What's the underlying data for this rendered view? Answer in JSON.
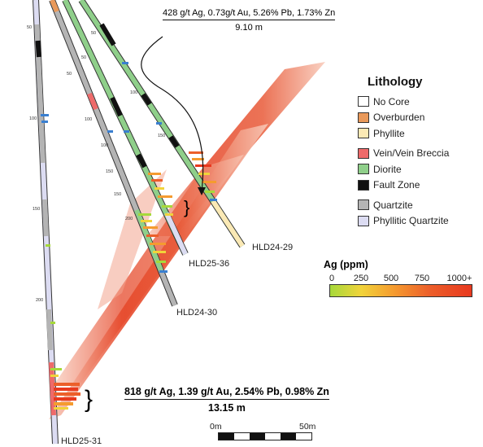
{
  "assays": {
    "top": {
      "grade": "428 g/t Ag, 0.73g/t Au, 5.26% Pb, 1.73% Zn",
      "width": "9.10 m"
    },
    "bottom": {
      "grade": "818 g/t Ag, 1.39 g/t Au, 2.54% Pb, 0.98% Zn",
      "width": "13.15 m"
    }
  },
  "holes": [
    "HLD24-29",
    "HLD25-36",
    "HLD24-30",
    "HLD25-31"
  ],
  "depth_ticks": [
    "50",
    "100",
    "150",
    "200",
    "50",
    "100",
    "150",
    "200",
    "50",
    "100",
    "150",
    "50",
    "100",
    "150"
  ],
  "legend": {
    "title": "Lithology",
    "items": [
      {
        "label": "No Core",
        "color": "#ffffff"
      },
      {
        "label": "Overburden",
        "color": "#e9995a"
      },
      {
        "label": "Phyllite",
        "color": "#fbe9b5"
      },
      {
        "label": "Vein/Vein Breccia",
        "color": "#ee6a6a"
      },
      {
        "label": "Diorite",
        "color": "#8fcf8a"
      },
      {
        "label": "Fault Zone",
        "color": "#111111"
      },
      {
        "label": "Quartzite",
        "color": "#b4b4b4"
      },
      {
        "label": "Phyllitic Quartzite",
        "color": "#dcdcf2"
      }
    ]
  },
  "ag_scale": {
    "title": "Ag (ppm)",
    "ticks": [
      "0",
      "250",
      "500",
      "750",
      "1000+"
    ],
    "colors": [
      "#a6d93a",
      "#f1d33a",
      "#f59b2f",
      "#ec5f2a",
      "#e8391f"
    ]
  },
  "scale_bar": {
    "start": "0m",
    "end": "50m"
  }
}
